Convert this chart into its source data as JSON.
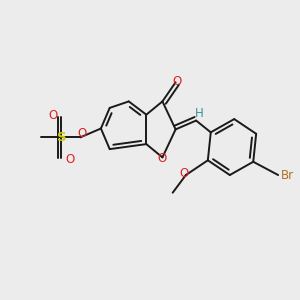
{
  "bg_color": "#ececec",
  "bond_color": "#1a1a1a",
  "bond_width": 1.4,
  "fig_size": [
    3.0,
    3.0
  ],
  "dpi": 100,
  "atoms": {
    "O_carbonyl": {
      "label": "O",
      "color": "#dd2222",
      "fontsize": 8.5
    },
    "O_furan": {
      "label": "O",
      "color": "#dd2222",
      "fontsize": 8.5
    },
    "O_link": {
      "label": "O",
      "color": "#dd2222",
      "fontsize": 8.5
    },
    "S": {
      "label": "S",
      "color": "#cccc00",
      "fontsize": 9.5
    },
    "O_s1": {
      "label": "O",
      "color": "#dd2222",
      "fontsize": 8.5
    },
    "O_s2": {
      "label": "O",
      "color": "#dd2222",
      "fontsize": 8.5
    },
    "H": {
      "label": "H",
      "color": "#3a9090",
      "fontsize": 8.5
    },
    "Br": {
      "label": "Br",
      "color": "#b07020",
      "fontsize": 8.5
    },
    "O_ome": {
      "label": "O",
      "color": "#dd2222",
      "fontsize": 8.5
    }
  }
}
